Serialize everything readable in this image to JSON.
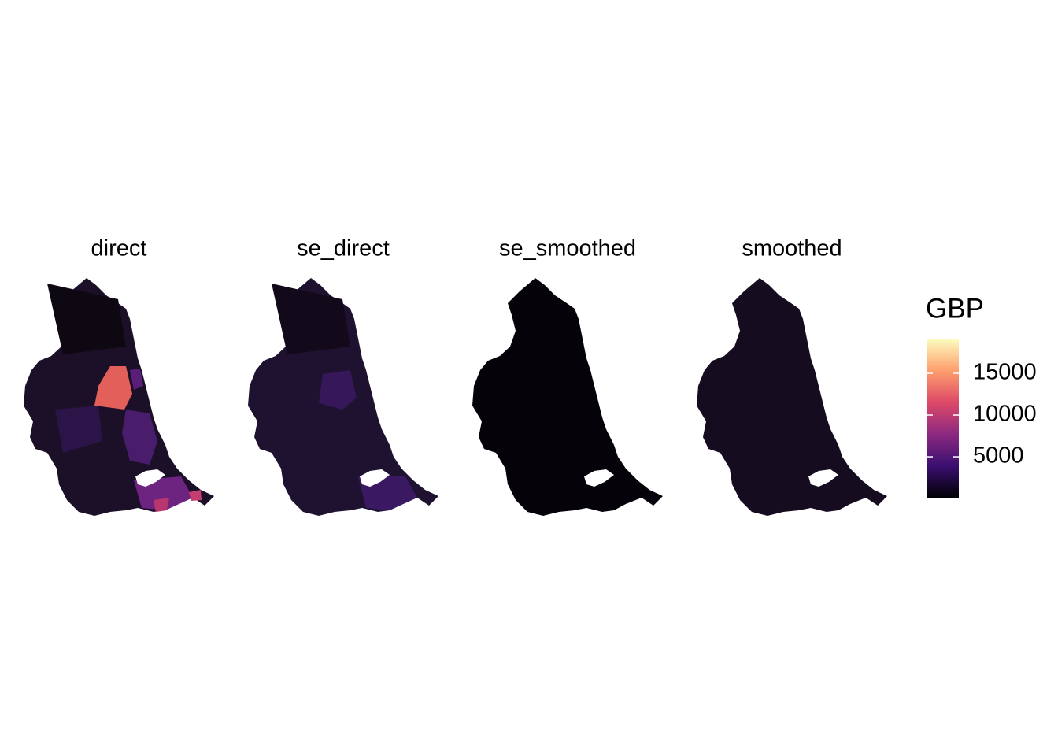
{
  "panels": [
    {
      "title": "direct"
    },
    {
      "title": "se_direct"
    },
    {
      "title": "se_smoothed"
    },
    {
      "title": "smoothed"
    }
  ],
  "legend": {
    "title": "GBP",
    "limits": [
      100,
      19150
    ],
    "ticks": [
      5000,
      10000,
      15000
    ],
    "colors": [
      "#000004",
      "#3b0f70",
      "#8c2981",
      "#de4968",
      "#fe9f6d",
      "#fcfdbf"
    ]
  }
}
